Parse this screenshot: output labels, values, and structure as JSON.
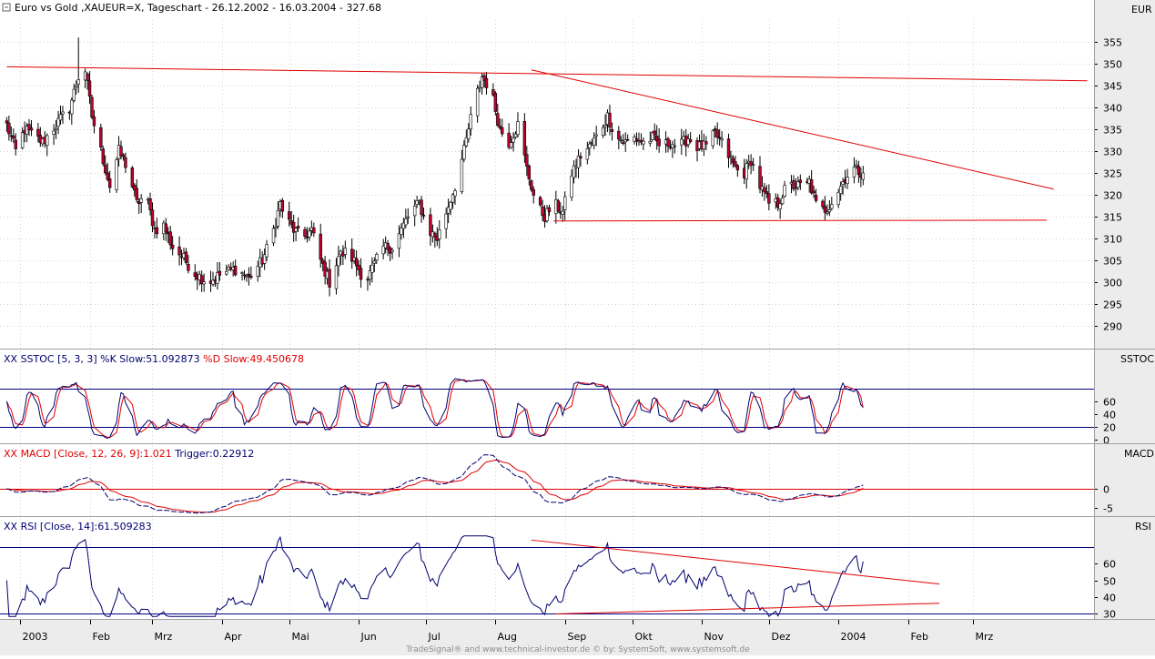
{
  "header": {
    "title": "Euro vs Gold ,XAUEUR=X, Tageschart - 26.12.2002 - 16.03.2004 - 327.68",
    "currency": "EUR"
  },
  "footer": {
    "credit": "TradeSignal® and www.technical-investor.de © by: SystemSoft, www.systemsoft.de"
  },
  "colors": {
    "line_dark": "#000070",
    "line_red": "#e00000",
    "candle_up": "#ffffff",
    "candle_down": "#c00030",
    "level_blue": "#000080"
  },
  "chart_data": [
    {
      "type": "candlestick",
      "name": "price",
      "ylabel": "EUR",
      "ylim": [
        285,
        360
      ],
      "yticks": [
        290,
        295,
        300,
        305,
        310,
        315,
        320,
        325,
        330,
        335,
        340,
        345,
        350,
        355
      ],
      "x_labels": [
        "2003",
        "Feb",
        "Mrz",
        "Apr",
        "Mai",
        "Jun",
        "Jul",
        "Aug",
        "Sep",
        "Okt",
        "Nov",
        "Dez",
        "2004",
        "Feb",
        "Mrz"
      ],
      "x_label_days": [
        6,
        37,
        65,
        96,
        126,
        157,
        187,
        218,
        249,
        279,
        310,
        340,
        371,
        402,
        431
      ],
      "anchors": [
        [
          0,
          336
        ],
        [
          4,
          330
        ],
        [
          8,
          335
        ],
        [
          16,
          332
        ],
        [
          22,
          336
        ],
        [
          28,
          340
        ],
        [
          32,
          347
        ],
        [
          34,
          352
        ],
        [
          38,
          338
        ],
        [
          42,
          330
        ],
        [
          46,
          322
        ],
        [
          50,
          330
        ],
        [
          54,
          326
        ],
        [
          58,
          318
        ],
        [
          62,
          320
        ],
        [
          66,
          312
        ],
        [
          70,
          313
        ],
        [
          74,
          308
        ],
        [
          78,
          306
        ],
        [
          84,
          302
        ],
        [
          90,
          300
        ],
        [
          96,
          302
        ],
        [
          102,
          303
        ],
        [
          108,
          301
        ],
        [
          114,
          305
        ],
        [
          118,
          310
        ],
        [
          122,
          318
        ],
        [
          124,
          315
        ],
        [
          128,
          312
        ],
        [
          132,
          310
        ],
        [
          136,
          312
        ],
        [
          140,
          305
        ],
        [
          144,
          300
        ],
        [
          148,
          306
        ],
        [
          152,
          307
        ],
        [
          156,
          304
        ],
        [
          160,
          300
        ],
        [
          164,
          304
        ],
        [
          168,
          308
        ],
        [
          172,
          308
        ],
        [
          176,
          312
        ],
        [
          180,
          316
        ],
        [
          184,
          318
        ],
        [
          188,
          312
        ],
        [
          192,
          310
        ],
        [
          196,
          316
        ],
        [
          200,
          322
        ],
        [
          204,
          330
        ],
        [
          208,
          340
        ],
        [
          212,
          347
        ],
        [
          216,
          344
        ],
        [
          220,
          335
        ],
        [
          224,
          332
        ],
        [
          228,
          336
        ],
        [
          232,
          326
        ],
        [
          236,
          318
        ],
        [
          240,
          315
        ],
        [
          244,
          318
        ],
        [
          248,
          316
        ],
        [
          252,
          325
        ],
        [
          256,
          329
        ],
        [
          260,
          331
        ],
        [
          264,
          334
        ],
        [
          268,
          338
        ],
        [
          272,
          333
        ],
        [
          276,
          332
        ],
        [
          280,
          333
        ],
        [
          284,
          332
        ],
        [
          288,
          333
        ],
        [
          292,
          331
        ],
        [
          296,
          332
        ],
        [
          300,
          331
        ],
        [
          304,
          333
        ],
        [
          308,
          331
        ],
        [
          312,
          331
        ],
        [
          316,
          334
        ],
        [
          320,
          331
        ],
        [
          324,
          327
        ],
        [
          328,
          324
        ],
        [
          332,
          328
        ],
        [
          336,
          322
        ],
        [
          340,
          318
        ],
        [
          344,
          318
        ],
        [
          348,
          322
        ],
        [
          352,
          322
        ],
        [
          356,
          322
        ],
        [
          358,
          323
        ],
        [
          362,
          316
        ],
        [
          366,
          317
        ],
        [
          370,
          320
        ],
        [
          374,
          324
        ],
        [
          378,
          326
        ],
        [
          382,
          325
        ],
        [
          384,
          327
        ]
      ],
      "lines": [
        {
          "name": "resistance-horizontal",
          "points": [
            [
              0,
              349.3
            ],
            [
              482,
              346.1
            ]
          ],
          "color": "#e00000"
        },
        {
          "name": "downtrend",
          "points": [
            [
              234,
              348.6
            ],
            [
              467,
              321.3
            ]
          ],
          "color": "#e00000"
        },
        {
          "name": "support",
          "points": [
            [
              244,
              314.0
            ],
            [
              464,
              314.2
            ]
          ],
          "color": "#e00000"
        }
      ]
    },
    {
      "type": "line",
      "name": "sstoc",
      "title_prefix": "XX SSTOC [5, 3, 3] %K Slow:",
      "k_value": "51.092873",
      "title_mid": " %D Slow:",
      "d_value": "49.450678",
      "axis_label": "SSTOC",
      "ylim": [
        -4,
        112
      ],
      "yticks": [
        0,
        20,
        40,
        60
      ],
      "levels": [
        20,
        80
      ],
      "series": [
        {
          "name": "%K Slow",
          "color": "#000070"
        },
        {
          "name": "%D Slow",
          "color": "#e00000"
        }
      ],
      "last_k": 51.1,
      "last_d": 49.5
    },
    {
      "type": "line",
      "name": "macd",
      "title_prefix": "XX MACD [Close, 12, 26, 9]:",
      "macd_value": "1.021",
      "title_mid": " Trigger:",
      "trigger_value": "0.22912",
      "axis_label": "MACD",
      "ylim": [
        -7,
        7
      ],
      "yticks": [
        0,
        -5
      ],
      "levels": [
        0
      ],
      "series": [
        {
          "name": "MACD",
          "color": "#000070"
        },
        {
          "name": "Trigger",
          "color": "#e00000"
        }
      ],
      "last_macd": 1.021,
      "last_trigger": 0.229
    },
    {
      "type": "line",
      "name": "rsi",
      "title_prefix": "XX RSI [Close, 14]:",
      "rsi_value": "61.509283",
      "axis_label": "RSI",
      "ylim": [
        27,
        78
      ],
      "yticks": [
        30,
        40,
        50,
        60
      ],
      "levels": [
        30,
        70
      ],
      "series": [
        {
          "name": "RSI",
          "color": "#000070"
        }
      ],
      "last_rsi": 61.5,
      "lines": [
        {
          "name": "rsi-downtrend",
          "points": [
            [
              234,
              74.5
            ],
            [
              416,
              47.7
            ]
          ],
          "color": "#e00000"
        },
        {
          "name": "rsi-uptrend",
          "points": [
            [
              245,
              29.5
            ],
            [
              416,
              36.0
            ]
          ],
          "color": "#e00000"
        }
      ]
    }
  ]
}
